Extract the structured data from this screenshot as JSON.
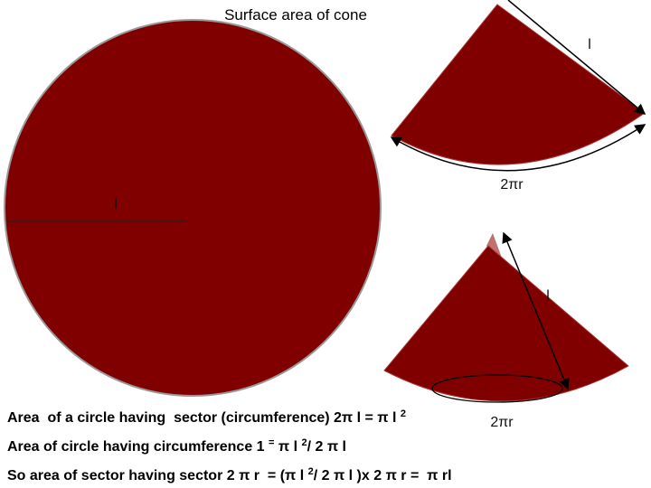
{
  "title": "Surface area of cone",
  "circle": {
    "radius_label": "l"
  },
  "sector_top": {
    "slant_label": "l",
    "arc_label": "2πr"
  },
  "sector_bottom": {
    "slant_label": "l",
    "arc_label": "2πr"
  },
  "lines": [
    {
      "parts": [
        {
          "text": "Area  of a circle having  sector (circumference) 2π l = π l "
        },
        {
          "sup": "2"
        }
      ]
    },
    {
      "parts": [
        {
          "text": "Area of circle having circumference 1 "
        },
        {
          "sup": "="
        },
        {
          "text": " π l "
        },
        {
          "sup": "2"
        },
        {
          "text": "/ 2 π l"
        }
      ]
    },
    {
      "parts": [
        {
          "text": "So area of sector having sector 2 π r  = (π l "
        },
        {
          "sup": "2"
        },
        {
          "text": "/ 2 π l )x 2 π r =  π rl"
        }
      ]
    }
  ]
}
